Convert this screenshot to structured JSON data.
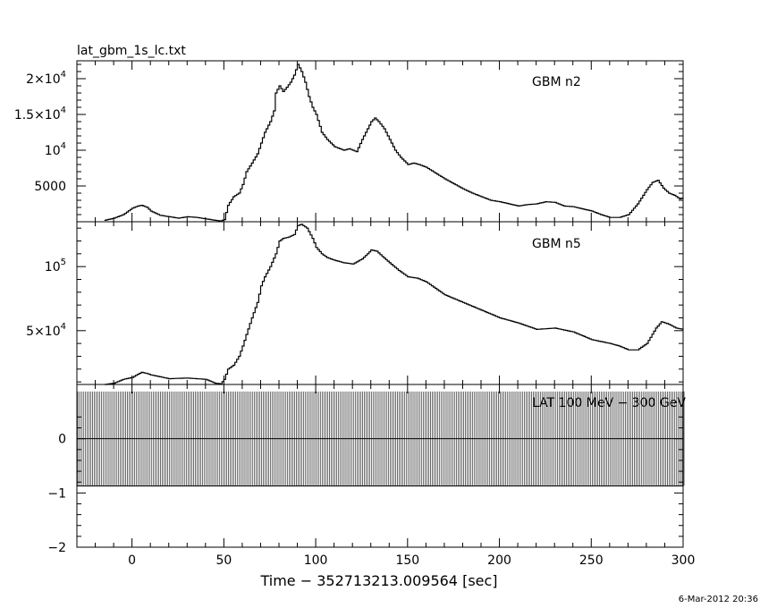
{
  "figure": {
    "title": "lat_gbm_1s_lc.txt",
    "xlabel": "Time − 352713213.009564 [sec]",
    "date_stamp": "6-Mar-2012 20:36"
  },
  "chart_data": [
    {
      "type": "line",
      "panel": "top",
      "label": "GBM n2",
      "xlim": [
        -30,
        300
      ],
      "ylim": [
        0,
        22500
      ],
      "yticks": [
        {
          "value": 5000,
          "label": "5000"
        },
        {
          "value": 10000,
          "label": "10^4"
        },
        {
          "value": 15000,
          "label": "1.5×10^4"
        },
        {
          "value": 20000,
          "label": "2×10^4"
        }
      ],
      "x": [
        -15,
        -10,
        -5,
        0,
        3,
        5,
        8,
        10,
        15,
        20,
        25,
        30,
        35,
        40,
        45,
        48,
        50,
        52,
        55,
        58,
        60,
        62,
        65,
        68,
        70,
        72,
        75,
        77,
        78,
        80,
        82,
        84,
        86,
        88,
        90,
        92,
        94,
        96,
        98,
        100,
        103,
        106,
        110,
        115,
        118,
        120,
        122,
        125,
        128,
        130,
        132,
        134,
        137,
        140,
        143,
        146,
        150,
        153,
        156,
        160,
        165,
        170,
        175,
        180,
        185,
        190,
        195,
        200,
        205,
        210,
        215,
        220,
        225,
        230,
        235,
        240,
        245,
        250,
        255,
        260,
        265,
        270,
        275,
        280,
        283,
        286,
        289,
        292,
        295,
        298,
        300
      ],
      "y": [
        200,
        500,
        1000,
        1900,
        2200,
        2300,
        2000,
        1500,
        900,
        700,
        500,
        700,
        600,
        400,
        200,
        100,
        300,
        2300,
        3500,
        4000,
        5200,
        7000,
        8200,
        9500,
        11000,
        12500,
        14000,
        15500,
        18000,
        19000,
        18200,
        18800,
        19500,
        20500,
        22000,
        21000,
        19500,
        17500,
        16000,
        15000,
        12500,
        11500,
        10500,
        10000,
        10200,
        10000,
        9800,
        11500,
        13000,
        14000,
        14500,
        14000,
        13000,
        11500,
        10000,
        9000,
        8000,
        8200,
        8000,
        7600,
        6800,
        6000,
        5300,
        4600,
        4000,
        3500,
        3000,
        2800,
        2500,
        2200,
        2400,
        2500,
        2800,
        2700,
        2200,
        2100,
        1800,
        1500,
        1000,
        600,
        600,
        1000,
        2500,
        4500,
        5500,
        5800,
        4700,
        4000,
        3700,
        3200,
        3400
      ]
    },
    {
      "type": "line",
      "panel": "middle",
      "label": "GBM n5",
      "xlim": [
        -30,
        300
      ],
      "ylim": [
        8000,
        135000
      ],
      "yticks": [
        {
          "value": 50000,
          "label": "5×10^4"
        },
        {
          "value": 100000,
          "label": "10^5"
        }
      ],
      "x": [
        -15,
        -10,
        -5,
        0,
        3,
        5,
        8,
        10,
        15,
        20,
        25,
        30,
        35,
        40,
        45,
        48,
        50,
        52,
        55,
        58,
        60,
        62,
        65,
        68,
        70,
        72,
        75,
        78,
        80,
        82,
        85,
        88,
        90,
        92,
        95,
        98,
        100,
        103,
        106,
        110,
        115,
        120,
        125,
        128,
        130,
        133,
        136,
        140,
        145,
        150,
        155,
        160,
        165,
        170,
        180,
        190,
        200,
        210,
        220,
        230,
        240,
        250,
        260,
        265,
        270,
        275,
        280,
        285,
        288,
        292,
        296,
        300
      ],
      "y": [
        8000,
        9000,
        12000,
        13500,
        16000,
        17500,
        16500,
        15500,
        14000,
        12500,
        12800,
        13000,
        12500,
        12000,
        9000,
        8500,
        12000,
        20000,
        23000,
        30000,
        38000,
        47000,
        60000,
        72000,
        85000,
        92000,
        100000,
        110000,
        120000,
        122000,
        123000,
        125000,
        132000,
        133000,
        130000,
        122000,
        115000,
        110000,
        107000,
        105000,
        103000,
        102000,
        106000,
        110000,
        113000,
        112000,
        108000,
        103000,
        97000,
        92000,
        91000,
        88000,
        83000,
        78000,
        72000,
        66000,
        60000,
        56000,
        51000,
        52000,
        49000,
        43000,
        40000,
        38000,
        35000,
        35000,
        40000,
        52000,
        57000,
        55000,
        52000,
        51000
      ]
    },
    {
      "type": "line",
      "panel": "bottom",
      "label": "LAT 100 MeV − 300 GeV",
      "xlim": [
        -30,
        300
      ],
      "ylim": [
        -2,
        1.0
      ],
      "yticks": [
        {
          "value": -2,
          "label": "−2"
        },
        {
          "value": -1,
          "label": "−1"
        },
        {
          "value": 0,
          "label": "0"
        }
      ],
      "xticks": [
        {
          "value": 0,
          "label": "0"
        },
        {
          "value": 50,
          "label": "50"
        },
        {
          "value": 100,
          "label": "100"
        },
        {
          "value": 150,
          "label": "150"
        },
        {
          "value": 200,
          "label": "200"
        },
        {
          "value": 250,
          "label": "250"
        },
        {
          "value": 300,
          "label": "300"
        }
      ],
      "values_shown_as": "zero line with error bars from about -0.87 to +0.87 at every 1 s bin",
      "error_bar_halfwidth": 0.87,
      "x_start": -30,
      "x_end": 300,
      "bin_width": 1
    }
  ]
}
